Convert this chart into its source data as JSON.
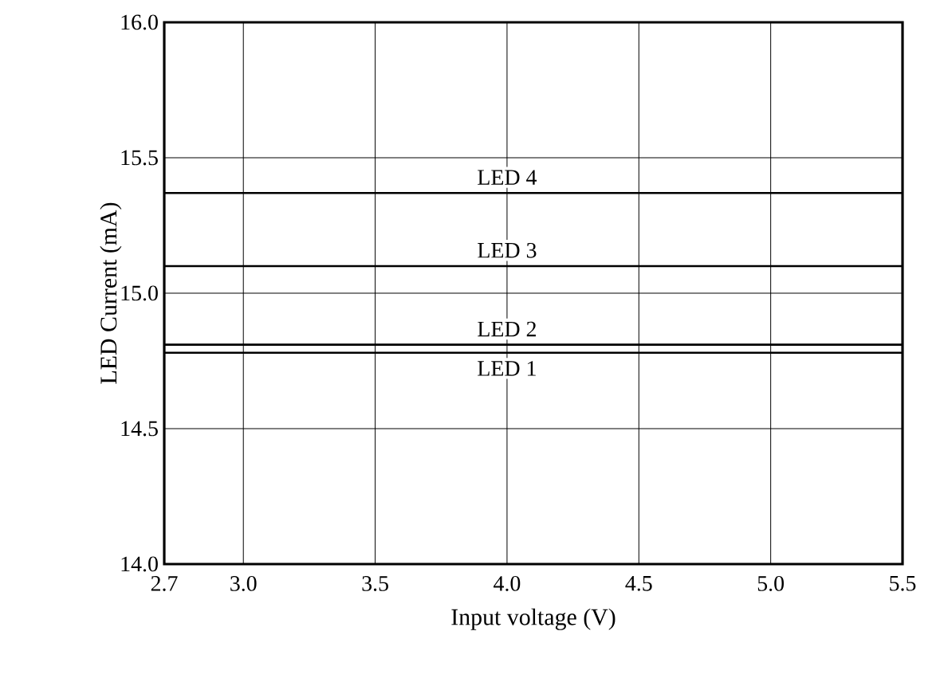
{
  "chart_data": {
    "type": "line",
    "xlabel": "Input voltage  (V)",
    "ylabel": "LED Current  (mA)",
    "xlim": [
      2.7,
      5.5
    ],
    "xticks": [
      2.7,
      {
        "value": 3,
        "label": "3.0"
      },
      3.5,
      {
        "value": 4,
        "label": "4.0"
      },
      4.5,
      {
        "value": 5,
        "label": "5.0"
      },
      5.5
    ],
    "ylim": [
      14,
      16
    ],
    "yticks": [
      {
        "value": 14,
        "label": "14.0"
      },
      14.5,
      {
        "value": 15,
        "label": "15.0"
      },
      15.5,
      {
        "value": 16,
        "label": "16.0"
      }
    ],
    "grid": true,
    "legend": false,
    "marker": "none",
    "line_style": "solid",
    "x": [
      2.7,
      5.5
    ],
    "series": [
      {
        "name": "LED 1",
        "color": "#000000",
        "values": [
          14.78,
          14.78
        ]
      },
      {
        "name": "LED 2",
        "color": "#000000",
        "values": [
          14.81,
          14.81
        ]
      },
      {
        "name": "LED 3",
        "color": "#000000",
        "values": [
          15.1,
          15.1
        ]
      },
      {
        "name": "LED 4",
        "color": "#000000",
        "values": [
          15.37,
          15.37
        ]
      }
    ]
  }
}
